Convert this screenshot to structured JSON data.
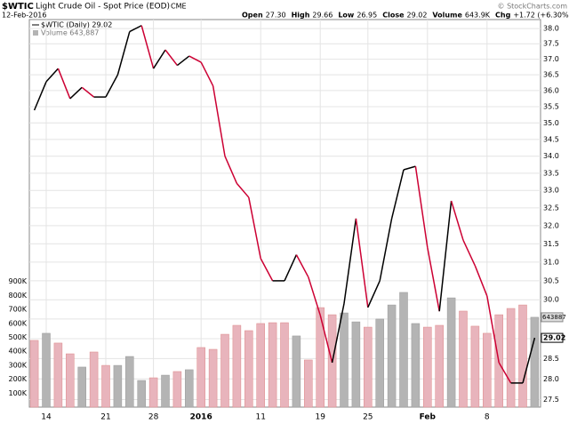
{
  "chart_data": {
    "type": "line",
    "title": "$WTIC",
    "subtitle": "Light Crude Oil - Spot Price (EOD)",
    "exchange": "CME",
    "date": "12-Feb-2016",
    "copyright": "© StockCharts.com",
    "quote": [
      [
        "Open",
        "27.30"
      ],
      [
        "High",
        "29.66"
      ],
      [
        "Low",
        "26.95"
      ],
      [
        "Close",
        "29.02"
      ],
      [
        "Volume",
        "643.9K"
      ],
      [
        "Chg",
        "+1.72 (+6.30%)"
      ]
    ],
    "legend": [
      "$WTIC (Daily) 29.02",
      "Volume 643,887"
    ],
    "categories": [
      null,
      "14",
      null,
      null,
      null,
      null,
      "21",
      null,
      null,
      null,
      "28",
      null,
      null,
      null,
      "2016",
      null,
      null,
      null,
      null,
      "11",
      null,
      null,
      null,
      null,
      "19",
      null,
      null,
      null,
      "25",
      null,
      null,
      null,
      null,
      "Feb",
      null,
      null,
      null,
      null,
      "8",
      null,
      null,
      null,
      null
    ],
    "series": [
      {
        "name": "$WTIC",
        "up_color": "#000000",
        "down_color": "#cc0033",
        "values": [
          35.39,
          36.28,
          36.7,
          35.75,
          36.1,
          35.8,
          35.8,
          36.5,
          37.9,
          38.1,
          36.7,
          37.3,
          36.8,
          37.1,
          36.9,
          36.15,
          34.0,
          33.2,
          32.8,
          31.1,
          30.5,
          30.5,
          31.2,
          30.6,
          29.6,
          28.4,
          29.9,
          32.2,
          29.8,
          30.5,
          32.2,
          33.6,
          33.7,
          31.4,
          29.7,
          32.7,
          31.6,
          30.9,
          30.1,
          28.4,
          27.9,
          27.9,
          29.02
        ]
      },
      {
        "name": "Volume",
        "axis": "y2",
        "values": [
          478000,
          529000,
          459000,
          382000,
          287000,
          395000,
          299000,
          299000,
          363000,
          191000,
          210000,
          229000,
          255000,
          268000,
          427000,
          414000,
          522000,
          586000,
          548000,
          599000,
          605000,
          605000,
          510000,
          338000,
          713000,
          662000,
          675000,
          611000,
          573000,
          631000,
          732000,
          822000,
          599000,
          573000,
          586000,
          783000,
          688000,
          580000,
          529000,
          662000,
          707000,
          732000,
          643887
        ],
        "colors": [
          "#e8b4bc",
          "#b4b4b4",
          "#e8b4bc",
          "#e8b4bc",
          "#b4b4b4",
          "#e8b4bc",
          "#e8b4bc",
          "#b4b4b4",
          "#b4b4b4",
          "#b4b4b4",
          "#e8b4bc",
          "#b4b4b4",
          "#e8b4bc",
          "#b4b4b4",
          "#e8b4bc",
          "#e8b4bc",
          "#e8b4bc",
          "#e8b4bc",
          "#e8b4bc",
          "#e8b4bc",
          "#e8b4bc",
          "#e8b4bc",
          "#b4b4b4",
          "#e8b4bc",
          "#e8b4bc",
          "#e8b4bc",
          "#b4b4b4",
          "#b4b4b4",
          "#e8b4bc",
          "#b4b4b4",
          "#b4b4b4",
          "#b4b4b4",
          "#b4b4b4",
          "#e8b4bc",
          "#e8b4bc",
          "#b4b4b4",
          "#e8b4bc",
          "#e8b4bc",
          "#e8b4bc",
          "#e8b4bc",
          "#e8b4bc",
          "#e8b4bc",
          "#b4b4b4"
        ]
      }
    ],
    "ylim": [
      27.32,
      38.3
    ],
    "log_scale": true,
    "yticks": [
      {
        "value": 27.5,
        "label": "27.5"
      },
      {
        "value": 28,
        "label": "28.0"
      },
      28.5,
      {
        "value": 29,
        "label": "29.0"
      },
      29.5,
      {
        "value": 30,
        "label": "30.0"
      },
      30.5,
      {
        "value": 31,
        "label": "31.0"
      },
      31.5,
      {
        "value": 32,
        "label": "32.0"
      },
      32.5,
      {
        "value": 33,
        "label": "33.0"
      },
      33.5,
      {
        "value": 34,
        "label": "34.0"
      },
      34.5,
      {
        "value": 35,
        "label": "35.0"
      },
      35.5,
      {
        "value": 36,
        "label": "36.0"
      },
      36.5,
      {
        "value": 37,
        "label": "37.0"
      },
      37.5,
      {
        "value": 38,
        "label": "38.0"
      }
    ],
    "y2lim": [
      0,
      2777000
    ],
    "y2ticks": [
      {
        "value": 100000,
        "label": "100K"
      },
      {
        "value": 200000,
        "label": "200K"
      },
      {
        "value": 300000,
        "label": "300K"
      },
      {
        "value": 400000,
        "label": "400K"
      },
      {
        "value": 500000,
        "label": "500K"
      },
      {
        "value": 600000,
        "label": "600K"
      },
      {
        "value": 700000,
        "label": "700K"
      },
      {
        "value": 800000,
        "label": "800K"
      },
      {
        "value": 900000,
        "label": "900K"
      }
    ],
    "grid": true
  }
}
